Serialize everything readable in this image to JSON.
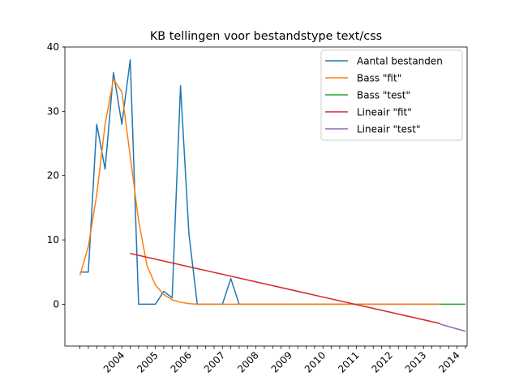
{
  "chart_data": {
    "type": "line",
    "title": "KB tellingen voor bestandstype text/css",
    "xlabel": "",
    "ylabel": "",
    "x_ticks": [
      "2004",
      "2005",
      "2006",
      "2007",
      "2008",
      "2009",
      "2010",
      "2011",
      "2012",
      "2013",
      "2014"
    ],
    "yticks": [
      0,
      10,
      20,
      30,
      40
    ],
    "ylim": [
      -6.5,
      40
    ],
    "xlim": [
      2002.55,
      2014.55
    ],
    "grid": false,
    "legend": "top-right",
    "series": [
      {
        "name": "Aantal bestanden",
        "color": "#1f77b4",
        "points": [
          [
            2003.0,
            5
          ],
          [
            2003.25,
            5
          ],
          [
            2003.5,
            28
          ],
          [
            2003.75,
            21
          ],
          [
            2004.0,
            36
          ],
          [
            2004.25,
            28
          ],
          [
            2004.5,
            38
          ],
          [
            2004.75,
            0
          ],
          [
            2005.0,
            0
          ],
          [
            2005.25,
            0
          ],
          [
            2005.5,
            2
          ],
          [
            2005.75,
            1
          ],
          [
            2006.0,
            34
          ],
          [
            2006.25,
            11
          ],
          [
            2006.5,
            0
          ],
          [
            2006.75,
            0
          ],
          [
            2007.0,
            0
          ],
          [
            2007.25,
            0
          ],
          [
            2007.5,
            4
          ],
          [
            2007.75,
            0
          ],
          [
            2008.0,
            0
          ],
          [
            2009.0,
            0
          ],
          [
            2010.0,
            0
          ],
          [
            2011.0,
            0
          ],
          [
            2012.0,
            0
          ],
          [
            2013.0,
            0
          ],
          [
            2013.75,
            0
          ]
        ]
      },
      {
        "name": "Bass \"fit\"",
        "color": "#ff7f0e",
        "points": [
          [
            2003.0,
            4.5
          ],
          [
            2003.25,
            9
          ],
          [
            2003.5,
            17
          ],
          [
            2003.75,
            28
          ],
          [
            2004.0,
            35
          ],
          [
            2004.25,
            33
          ],
          [
            2004.5,
            23
          ],
          [
            2004.75,
            13
          ],
          [
            2005.0,
            6
          ],
          [
            2005.25,
            3
          ],
          [
            2005.5,
            1.5
          ],
          [
            2005.75,
            0.7
          ],
          [
            2006.0,
            0.3
          ],
          [
            2006.25,
            0.1
          ],
          [
            2006.5,
            0
          ],
          [
            2007.0,
            0
          ],
          [
            2008.0,
            0
          ],
          [
            2009.0,
            0
          ],
          [
            2010.0,
            0
          ],
          [
            2011.0,
            0
          ],
          [
            2012.0,
            0
          ],
          [
            2013.0,
            0
          ],
          [
            2013.75,
            0
          ]
        ]
      },
      {
        "name": "Bass \"test\"",
        "color": "#2ca02c",
        "points": [
          [
            2013.75,
            0
          ],
          [
            2014.0,
            0
          ],
          [
            2014.25,
            0
          ],
          [
            2014.5,
            0
          ]
        ]
      },
      {
        "name": "Lineair \"fit\"",
        "color": "#d62728",
        "points": [
          [
            2004.5,
            7.9
          ],
          [
            2013.75,
            -3.0
          ]
        ]
      },
      {
        "name": "Lineair \"test\"",
        "color": "#9467bd",
        "points": [
          [
            2013.75,
            -3.1
          ],
          [
            2014.5,
            -4.2
          ]
        ]
      }
    ]
  }
}
